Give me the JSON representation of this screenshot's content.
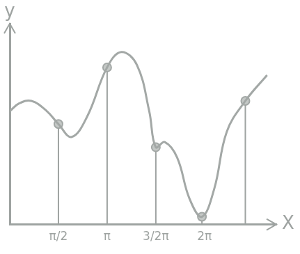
{
  "chart_data": {
    "type": "line",
    "x_label": "X",
    "y_label": "y",
    "xlim": [
      0,
      8.6
    ],
    "ylim": [
      -0.3,
      3.6
    ],
    "xticks": [
      {
        "value": 1.5708,
        "label": "π/2"
      },
      {
        "value": 3.1416,
        "label": "π"
      },
      {
        "value": 4.7124,
        "label": "3/2π"
      },
      {
        "value": 6.2832,
        "label": "2π"
      }
    ],
    "yticks": [],
    "tick_labels": "x",
    "grid": false,
    "series": [
      {
        "type": "line",
        "color": "#a3a8a6",
        "marker": "none",
        "line_style": "solid",
        "x": [
          0,
          0.3,
          0.7,
          1.2,
          1.57,
          2.0,
          2.5,
          3.14,
          3.6,
          4.1,
          4.5,
          4.71,
          5.0,
          5.4,
          5.8,
          6.2,
          6.6,
          7.0,
          7.6,
          8.3
        ],
        "values": [
          1.9,
          2.05,
          2.1,
          1.9,
          1.65,
          1.4,
          1.8,
          2.75,
          3.05,
          2.8,
          1.9,
          1.2,
          1.3,
          1.0,
          0.2,
          -0.15,
          0.4,
          1.5,
          2.1,
          2.6
        ]
      },
      {
        "type": "scatter",
        "color": "#a3a8a6",
        "marker": "circle",
        "line_style": "none",
        "x": [
          1.5708,
          3.1416,
          4.7124,
          6.2,
          7.6
        ],
        "values": [
          1.65,
          2.75,
          1.2,
          -0.15,
          2.1
        ]
      }
    ]
  }
}
